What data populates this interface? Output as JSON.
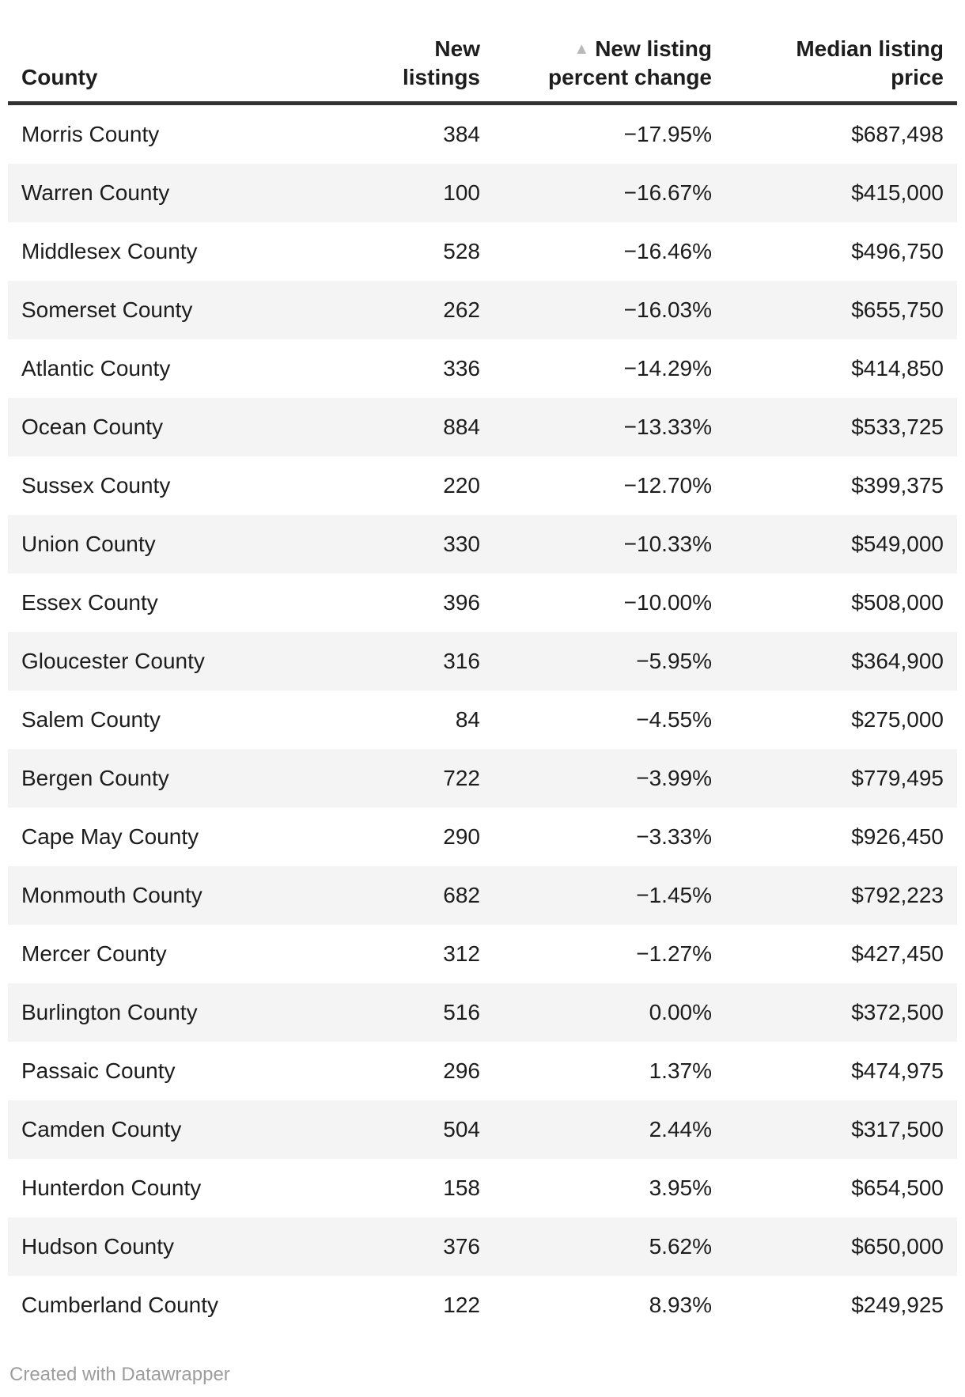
{
  "colors": {
    "text": "#1d1d1d",
    "header_border": "#333333",
    "stripe": "#f4f4f4",
    "sort_icon": "#b9b9b9",
    "footer_text": "#9d9d9d",
    "background": "#ffffff"
  },
  "icons": {
    "sort_ascending": "▲"
  },
  "table": {
    "columns": [
      {
        "label": "County"
      },
      {
        "label": "New listings"
      },
      {
        "label": "New listing percent change",
        "label_line1": "New listing",
        "label_line2": "percent change",
        "sorted": "ascending"
      },
      {
        "label": "Median listing price",
        "label_line1": "Median listing",
        "label_line2": "price"
      }
    ],
    "rows": [
      [
        "Morris County",
        "384",
        "−17.95%",
        "$687,498"
      ],
      [
        "Warren County",
        "100",
        "−16.67%",
        "$415,000"
      ],
      [
        "Middlesex County",
        "528",
        "−16.46%",
        "$496,750"
      ],
      [
        "Somerset County",
        "262",
        "−16.03%",
        "$655,750"
      ],
      [
        "Atlantic County",
        "336",
        "−14.29%",
        "$414,850"
      ],
      [
        "Ocean County",
        "884",
        "−13.33%",
        "$533,725"
      ],
      [
        "Sussex County",
        "220",
        "−12.70%",
        "$399,375"
      ],
      [
        "Union County",
        "330",
        "−10.33%",
        "$549,000"
      ],
      [
        "Essex County",
        "396",
        "−10.00%",
        "$508,000"
      ],
      [
        "Gloucester County",
        "316",
        "−5.95%",
        "$364,900"
      ],
      [
        "Salem County",
        "84",
        "−4.55%",
        "$275,000"
      ],
      [
        "Bergen County",
        "722",
        "−3.99%",
        "$779,495"
      ],
      [
        "Cape May County",
        "290",
        "−3.33%",
        "$926,450"
      ],
      [
        "Monmouth County",
        "682",
        "−1.45%",
        "$792,223"
      ],
      [
        "Mercer County",
        "312",
        "−1.27%",
        "$427,450"
      ],
      [
        "Burlington County",
        "516",
        "0.00%",
        "$372,500"
      ],
      [
        "Passaic County",
        "296",
        "1.37%",
        "$474,975"
      ],
      [
        "Camden County",
        "504",
        "2.44%",
        "$317,500"
      ],
      [
        "Hunterdon County",
        "158",
        "3.95%",
        "$654,500"
      ],
      [
        "Hudson County",
        "376",
        "5.62%",
        "$650,000"
      ],
      [
        "Cumberland County",
        "122",
        "8.93%",
        "$249,925"
      ]
    ]
  },
  "footer": {
    "credit": "Created with Datawrapper"
  },
  "chart_data": {
    "type": "table",
    "title": "",
    "columns": [
      "County",
      "New listings",
      "New listing percent change",
      "Median listing price"
    ],
    "sort": {
      "column": "New listing percent change",
      "direction": "ascending"
    },
    "rows": [
      {
        "county": "Morris County",
        "new_listings": 384,
        "percent_change": -17.95,
        "median_listing_price": 687498
      },
      {
        "county": "Warren County",
        "new_listings": 100,
        "percent_change": -16.67,
        "median_listing_price": 415000
      },
      {
        "county": "Middlesex County",
        "new_listings": 528,
        "percent_change": -16.46,
        "median_listing_price": 496750
      },
      {
        "county": "Somerset County",
        "new_listings": 262,
        "percent_change": -16.03,
        "median_listing_price": 655750
      },
      {
        "county": "Atlantic County",
        "new_listings": 336,
        "percent_change": -14.29,
        "median_listing_price": 414850
      },
      {
        "county": "Ocean County",
        "new_listings": 884,
        "percent_change": -13.33,
        "median_listing_price": 533725
      },
      {
        "county": "Sussex County",
        "new_listings": 220,
        "percent_change": -12.7,
        "median_listing_price": 399375
      },
      {
        "county": "Union County",
        "new_listings": 330,
        "percent_change": -10.33,
        "median_listing_price": 549000
      },
      {
        "county": "Essex County",
        "new_listings": 396,
        "percent_change": -10.0,
        "median_listing_price": 508000
      },
      {
        "county": "Gloucester County",
        "new_listings": 316,
        "percent_change": -5.95,
        "median_listing_price": 364900
      },
      {
        "county": "Salem County",
        "new_listings": 84,
        "percent_change": -4.55,
        "median_listing_price": 275000
      },
      {
        "county": "Bergen County",
        "new_listings": 722,
        "percent_change": -3.99,
        "median_listing_price": 779495
      },
      {
        "county": "Cape May County",
        "new_listings": 290,
        "percent_change": -3.33,
        "median_listing_price": 926450
      },
      {
        "county": "Monmouth County",
        "new_listings": 682,
        "percent_change": -1.45,
        "median_listing_price": 792223
      },
      {
        "county": "Mercer County",
        "new_listings": 312,
        "percent_change": -1.27,
        "median_listing_price": 427450
      },
      {
        "county": "Burlington County",
        "new_listings": 516,
        "percent_change": 0.0,
        "median_listing_price": 372500
      },
      {
        "county": "Passaic County",
        "new_listings": 296,
        "percent_change": 1.37,
        "median_listing_price": 474975
      },
      {
        "county": "Camden County",
        "new_listings": 504,
        "percent_change": 2.44,
        "median_listing_price": 317500
      },
      {
        "county": "Hunterdon County",
        "new_listings": 158,
        "percent_change": 3.95,
        "median_listing_price": 654500
      },
      {
        "county": "Hudson County",
        "new_listings": 376,
        "percent_change": 5.62,
        "median_listing_price": 650000
      },
      {
        "county": "Cumberland County",
        "new_listings": 122,
        "percent_change": 8.93,
        "median_listing_price": 249925
      }
    ],
    "credit": "Created with Datawrapper"
  }
}
